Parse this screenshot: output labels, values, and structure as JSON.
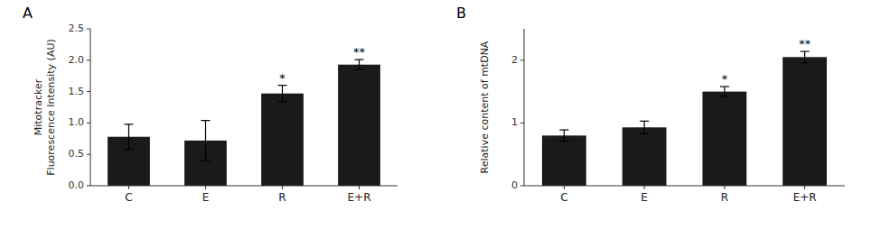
{
  "chart_data": [
    {
      "type": "bar",
      "title": "A",
      "categories": [
        "C",
        "E",
        "R",
        "E+R"
      ],
      "values": [
        0.78,
        0.72,
        1.47,
        1.93
      ],
      "errors": [
        0.2,
        0.32,
        0.13,
        0.08
      ],
      "ylabel": [
        "Mitotracker",
        "Fluorescence Intensity (AU)"
      ],
      "ylim": [
        0,
        2.5
      ],
      "yticks": [
        {
          "value": 0,
          "label": "0.0"
        },
        0.5,
        {
          "value": 1.0,
          "label": "1.0"
        },
        1.5,
        {
          "value": 2.0,
          "label": "2.0"
        },
        2.5
      ],
      "annotations": [
        {
          "category": "R",
          "text": "*"
        },
        {
          "category": "E+R",
          "text": "**"
        }
      ],
      "color": "#1a1a1a",
      "grid": false
    },
    {
      "type": "bar",
      "title": "B",
      "categories": [
        "C",
        "E",
        "R",
        "E+R"
      ],
      "values": [
        0.8,
        0.93,
        1.5,
        2.05
      ],
      "errors": [
        0.09,
        0.1,
        0.08,
        0.09
      ],
      "ylabel": "Relative content of mtDNA",
      "ylim": [
        0,
        2.5
      ],
      "yticks": [
        0,
        1,
        2
      ],
      "annotations": [
        {
          "category": "R",
          "text": "*"
        },
        {
          "category": "E+R",
          "text": "**"
        }
      ],
      "color": "#1a1a1a",
      "grid": false
    }
  ]
}
